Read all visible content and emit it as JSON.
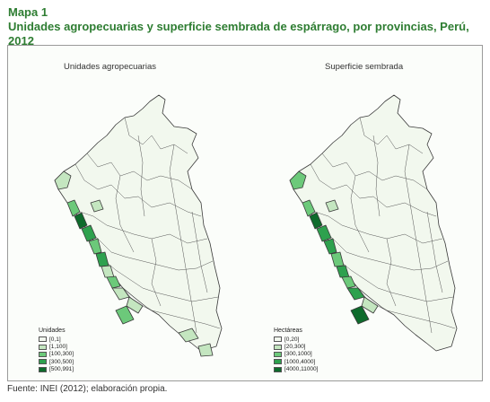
{
  "title": {
    "line1": "Mapa 1",
    "line2": "Unidades agropecuarias y superficie sembrada de espárrago, por provincias, Perú, 2012"
  },
  "maps": [
    {
      "title": "Unidades agropecuarias",
      "legend_title": "Unidades",
      "legend": [
        {
          "label": "[0,1]",
          "color": "#f2f8ee"
        },
        {
          "label": "[1,100]",
          "color": "#c4e6c0"
        },
        {
          "label": "[100,300]",
          "color": "#6cc97a"
        },
        {
          "label": "[300,500]",
          "color": "#2ea14e"
        },
        {
          "label": "[500,991]",
          "color": "#0e6b2c"
        }
      ]
    },
    {
      "title": "Superficie sembrada",
      "legend_title": "Hectáreas",
      "legend": [
        {
          "label": "[0,20]",
          "color": "#f2f8ee"
        },
        {
          "label": "[20,300]",
          "color": "#c4e6c0"
        },
        {
          "label": "[300,1000]",
          "color": "#6cc97a"
        },
        {
          "label": "[1000,4000]",
          "color": "#2ea14e"
        },
        {
          "label": "[4000,11000]",
          "color": "#0e6b2c"
        }
      ]
    }
  ],
  "source": "Fuente: INEI (2012); elaboración propia."
}
